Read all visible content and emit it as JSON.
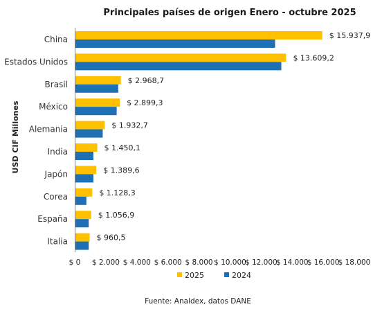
{
  "chart_data": {
    "type": "bar",
    "orientation": "horizontal",
    "title": "Principales países de origen Enero - octubre 2025",
    "ylabel": "USD CIF Millones",
    "source": "Fuente: Analdex, datos DANE",
    "categories": [
      "China",
      "Estados Unidos",
      "Brasil",
      "México",
      "Alemania",
      "India",
      "Japón",
      "Corea",
      "España",
      "Italia"
    ],
    "series": [
      {
        "name": "2025",
        "color": "#FFC000",
        "values": [
          15937.9,
          13609.2,
          2968.7,
          2899.3,
          1932.7,
          1450.1,
          1389.6,
          1128.3,
          1056.9,
          960.5
        ],
        "labels": [
          "$ 15.937,9",
          "$ 13.609,2",
          "$ 2.968,7",
          "$ 2.899,3",
          "$ 1.932,7",
          "$ 1.450,1",
          "$ 1.389,6",
          "$ 1.128,3",
          "$ 1.056,9",
          "$ 960,5"
        ]
      },
      {
        "name": "2024",
        "color": "#1F6FB5",
        "values": [
          12900,
          13300,
          2800,
          2700,
          1800,
          1200,
          1200,
          750,
          900,
          900
        ]
      }
    ],
    "xlim": [
      0,
      18000
    ],
    "xticks": [
      0,
      2000,
      4000,
      6000,
      8000,
      10000,
      12000,
      14000,
      16000,
      18000
    ],
    "xtick_labels": [
      "$ 0",
      "$ 2.000",
      "$ 4.000",
      "$ 6.000",
      "$ 8.000",
      "$ 10.000",
      "$ 12.000",
      "$ 14.000",
      "$ 16.000",
      "$ 18.000"
    ],
    "grid": false,
    "legend": "bottom"
  }
}
